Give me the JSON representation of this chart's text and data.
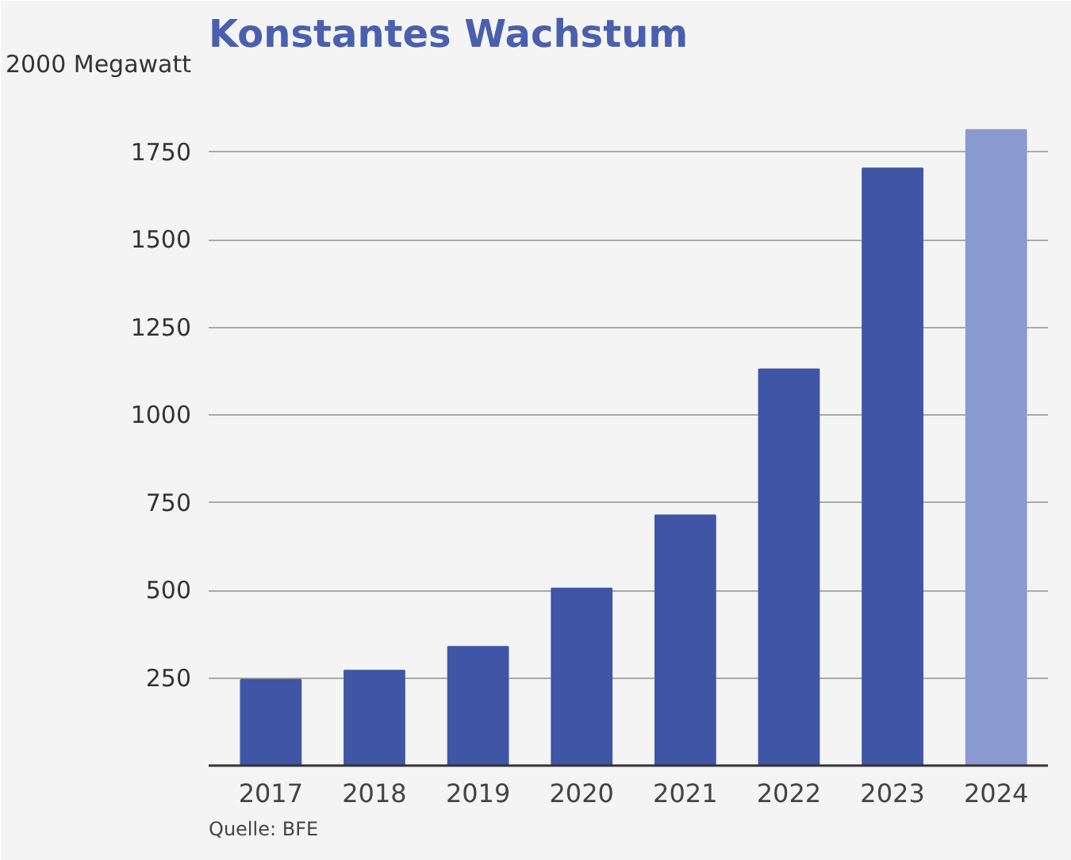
{
  "chart_data": {
    "type": "bar",
    "title": "Konstantes Wachstum",
    "categories": [
      "2017",
      "2018",
      "2019",
      "2020",
      "2021",
      "2022",
      "2023",
      "2024"
    ],
    "values": [
      245,
      271,
      339,
      505,
      714,
      1130,
      1703,
      1813
    ],
    "colors": [
      "#3f56a6",
      "#3f56a6",
      "#3f56a6",
      "#3f56a6",
      "#3f56a6",
      "#3f56a6",
      "#3f56a6",
      "#8a99d0"
    ],
    "ylim": [
      0,
      2000
    ],
    "yticks": [
      {
        "value": 0,
        "label": null
      },
      250,
      500,
      750,
      1000,
      1250,
      1500,
      1750,
      {
        "value": 2000,
        "label": "2000 Megawatt"
      }
    ],
    "grid": "y",
    "annotations": [
      "Quelle: BFE"
    ]
  }
}
